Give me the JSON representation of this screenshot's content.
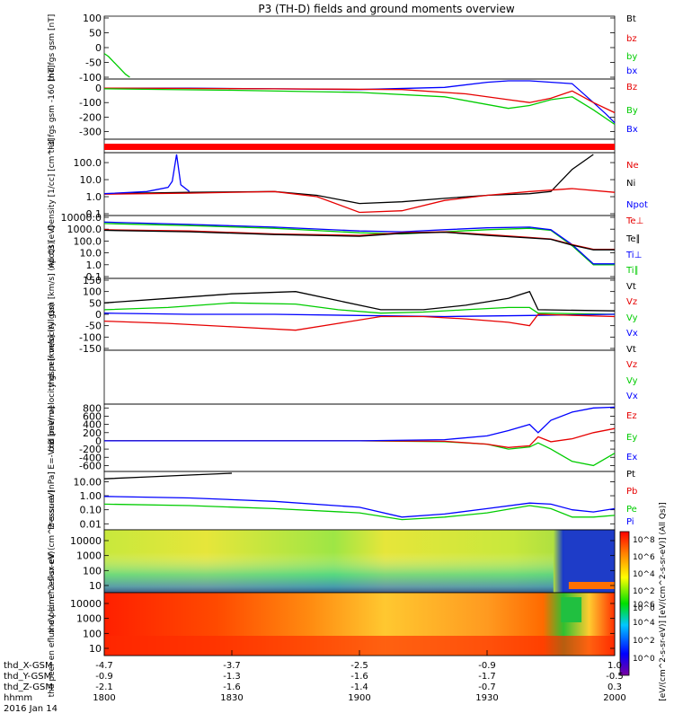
{
  "title": "P3 (TH-D) fields and ground moments overview",
  "x_axis": {
    "rows": [
      {
        "label": "thd_X-GSM",
        "values": [
          "-4.7",
          "-3.7",
          "-2.5",
          "-0.9",
          "1.0"
        ]
      },
      {
        "label": "thd_Y-GSM",
        "values": [
          "-0.9",
          "-1.3",
          "-1.6",
          "-1.7",
          "-0.5"
        ]
      },
      {
        "label": "thd_Z-GSM",
        "values": [
          "-2.1",
          "-1.6",
          "-1.4",
          "-0.7",
          "0.3"
        ]
      },
      {
        "label": "hhmm",
        "values": [
          "1800",
          "1830",
          "1900",
          "1930",
          "2000"
        ]
      }
    ],
    "date": "2016 Jan 14"
  },
  "colorbar": {
    "ticks": [
      "10^8",
      "10^6",
      "10^4",
      "10^2",
      "10^0"
    ],
    "label": "[eV/(cm^2-s-sr-eV)] [eV/(cm^2-s-sr-eV)] (All Qs)]"
  },
  "colors": {
    "black": "#000000",
    "red": "#e60000",
    "green": "#00cc00",
    "blue": "#0000ff"
  },
  "chart_data": [
    {
      "type": "line",
      "ylabel": "thd fgs gsm [nT]",
      "yticks": [
        "100",
        "50",
        "0",
        "-50",
        "-100"
      ],
      "ylim": [
        -100,
        100
      ],
      "legend": [
        "Bt",
        "bz",
        "by",
        "bx"
      ],
      "series": [
        {
          "name": "by",
          "color": "green",
          "x": [
            0,
            1,
            3,
            5,
            6
          ],
          "y": [
            -20,
            -30,
            -60,
            -90,
            -100
          ]
        }
      ]
    },
    {
      "type": "line",
      "ylabel": "thd fgs gsm -160 [nT]",
      "yticks": [
        "0",
        "-100",
        "-200",
        "-300"
      ],
      "ylim": [
        -340,
        50
      ],
      "legend": [
        "Bz",
        "By",
        "Bx"
      ],
      "series": [
        {
          "name": "Bx",
          "color": "blue",
          "x": [
            0,
            20,
            40,
            60,
            80,
            90,
            95,
            100,
            110,
            115,
            118,
            120
          ],
          "y": [
            0,
            0,
            -5,
            -10,
            5,
            40,
            80,
            90,
            30,
            -100,
            -180,
            -240
          ]
        },
        {
          "name": "Bz",
          "color": "red",
          "x": [
            0,
            40,
            70,
            85,
            95,
            100,
            105,
            110,
            115,
            120
          ],
          "y": [
            0,
            -5,
            -10,
            -40,
            -80,
            -100,
            -70,
            -20,
            -100,
            -170
          ]
        },
        {
          "name": "By",
          "color": "green",
          "x": [
            0,
            30,
            60,
            80,
            95,
            100,
            105,
            110,
            115,
            120
          ],
          "y": [
            -5,
            -15,
            -30,
            -60,
            -140,
            -120,
            -80,
            -60,
            -150,
            -250
          ]
        }
      ]
    },
    {
      "type": "bar-strip",
      "ylabel": "",
      "note": "solid red status bar"
    },
    {
      "type": "line",
      "ylabel": "Density [1/cc] [cm^-3]",
      "yticks": [
        "100.0",
        "10.0",
        "1.0",
        "0.1"
      ],
      "ylim": [
        0.1,
        300
      ],
      "yscale": "log",
      "legend": [
        "Ne",
        "Ni",
        "Npot"
      ],
      "series": [
        {
          "name": "Ni",
          "color": "black",
          "x": [
            0,
            20,
            40,
            50,
            60,
            70,
            80,
            90,
            100,
            105,
            110,
            115
          ],
          "y": [
            1.5,
            1.8,
            2.0,
            1.2,
            0.4,
            0.5,
            0.8,
            1.2,
            1.5,
            2.0,
            40,
            400
          ]
        },
        {
          "name": "Ne",
          "color": "red",
          "x": [
            0,
            20,
            40,
            50,
            60,
            70,
            80,
            90,
            100,
            110,
            120
          ],
          "y": [
            1.4,
            1.6,
            2.0,
            1.0,
            0.12,
            0.15,
            0.6,
            1.2,
            2.0,
            3.0,
            1.8
          ]
        },
        {
          "name": "Npot",
          "color": "blue",
          "x": [
            0,
            10,
            15,
            16,
            17,
            18,
            20
          ],
          "y": [
            1.5,
            2.0,
            3.5,
            8,
            300,
            5,
            2.0
          ]
        }
      ]
    },
    {
      "type": "line",
      "ylabel": "npot3 [eV]",
      "yticks": [
        "10000.0",
        "1000.0",
        "100.0",
        "10.0",
        "1.0",
        "0.1"
      ],
      "ylim": [
        0.1,
        10000
      ],
      "yscale": "log",
      "legend": [
        "Te⊥",
        "Te∥",
        "Ti⊥",
        "Ti∥"
      ],
      "series": [
        {
          "name": "Ti∥",
          "color": "green",
          "x": [
            0,
            20,
            40,
            60,
            70,
            80,
            90,
            100,
            105,
            110,
            115,
            120
          ],
          "y": [
            3000,
            2000,
            1200,
            500,
            400,
            600,
            900,
            1200,
            800,
            40,
            1.0,
            1.0
          ]
        },
        {
          "name": "Ti⊥",
          "color": "blue",
          "x": [
            0,
            20,
            40,
            60,
            70,
            80,
            90,
            100,
            105,
            110,
            115,
            120
          ],
          "y": [
            4000,
            2500,
            1500,
            700,
            600,
            900,
            1300,
            1500,
            900,
            50,
            1.2,
            1.2
          ]
        },
        {
          "name": "Te⊥",
          "color": "red",
          "x": [
            0,
            20,
            40,
            60,
            70,
            80,
            90,
            100,
            105,
            110,
            115,
            120
          ],
          "y": [
            900,
            700,
            400,
            300,
            500,
            600,
            350,
            200,
            150,
            50,
            20,
            20
          ]
        },
        {
          "name": "Te∥",
          "color": "black",
          "x": [
            0,
            20,
            40,
            60,
            70,
            80,
            90,
            100,
            105,
            110,
            115,
            120
          ],
          "y": [
            800,
            600,
            350,
            250,
            450,
            550,
            300,
            180,
            140,
            45,
            18,
            18
          ]
        }
      ]
    },
    {
      "type": "line",
      "ylabel": "thd peir velocity gsm [km/s] (All Qs)",
      "yticks": [
        "150",
        "100",
        "50",
        "0",
        "-50",
        "-100",
        "-150"
      ],
      "ylim": [
        -150,
        150
      ],
      "legend": [
        "Vt",
        "Vz",
        "Vy",
        "Vx"
      ],
      "series": [
        {
          "name": "Vt",
          "color": "black",
          "x": [
            0,
            15,
            30,
            45,
            55,
            65,
            75,
            85,
            95,
            100,
            102,
            120
          ],
          "y": [
            50,
            70,
            90,
            100,
            60,
            20,
            20,
            40,
            70,
            100,
            20,
            15
          ]
        },
        {
          "name": "Vy",
          "color": "green",
          "x": [
            0,
            15,
            30,
            45,
            55,
            65,
            75,
            85,
            95,
            100,
            102,
            120
          ],
          "y": [
            20,
            30,
            50,
            45,
            20,
            5,
            10,
            20,
            30,
            30,
            5,
            0
          ]
        },
        {
          "name": "Vx",
          "color": "blue",
          "x": [
            0,
            20,
            40,
            60,
            80,
            100,
            120
          ],
          "y": [
            5,
            0,
            0,
            -5,
            -10,
            -5,
            0
          ]
        },
        {
          "name": "Vz",
          "color": "red",
          "x": [
            0,
            15,
            30,
            45,
            55,
            65,
            75,
            85,
            95,
            100,
            102,
            120
          ],
          "y": [
            -30,
            -40,
            -55,
            -70,
            -40,
            -10,
            -10,
            -20,
            -35,
            -50,
            0,
            -10
          ]
        }
      ]
    },
    {
      "type": "line",
      "ylabel": "thd peer velocity gsm [km/s] (All Qs)",
      "yticks": [],
      "ylim": [
        -150,
        150
      ],
      "legend": [
        "Vt",
        "Vz",
        "Vy",
        "Vx"
      ],
      "series": []
    },
    {
      "type": "line",
      "ylabel": "E=-VxB [mV/m]",
      "yticks": [
        "800",
        "600",
        "400",
        "200",
        "0",
        "-200",
        "-400",
        "-600"
      ],
      "ylim": [
        -700,
        850
      ],
      "legend": [
        "Ez",
        "Ey",
        "Ex"
      ],
      "series": [
        {
          "name": "Ey",
          "color": "green",
          "x": [
            0,
            60,
            80,
            90,
            95,
            100,
            102,
            105,
            110,
            115,
            120
          ],
          "y": [
            0,
            0,
            -20,
            -80,
            -200,
            -150,
            -50,
            -200,
            -500,
            -600,
            -300
          ]
        },
        {
          "name": "Ez",
          "color": "red",
          "x": [
            0,
            60,
            80,
            90,
            95,
            100,
            102,
            105,
            110,
            115,
            120
          ],
          "y": [
            0,
            0,
            -10,
            -80,
            -160,
            -120,
            100,
            -20,
            50,
            200,
            300
          ]
        },
        {
          "name": "Ex",
          "color": "blue",
          "x": [
            0,
            60,
            80,
            90,
            95,
            100,
            102,
            105,
            110,
            115,
            120
          ],
          "y": [
            0,
            0,
            30,
            120,
            250,
            400,
            200,
            500,
            700,
            800,
            820
          ]
        }
      ]
    },
    {
      "type": "line",
      "ylabel": "Pressure [nPa]",
      "yticks": [
        "10.00",
        "1.00",
        "0.10",
        "0.01"
      ],
      "ylim": [
        0.005,
        40
      ],
      "yscale": "log",
      "legend": [
        "Pt",
        "Pb",
        "Pe",
        "Pi"
      ],
      "series": [
        {
          "name": "Pt",
          "color": "black",
          "x": [
            0,
            10,
            20,
            30
          ],
          "y": [
            16,
            22,
            30,
            40
          ]
        },
        {
          "name": "Pi",
          "color": "blue",
          "x": [
            0,
            20,
            40,
            60,
            70,
            80,
            90,
            100,
            105,
            110,
            115,
            120
          ],
          "y": [
            0.9,
            0.7,
            0.4,
            0.15,
            0.03,
            0.05,
            0.12,
            0.3,
            0.25,
            0.1,
            0.07,
            0.12
          ]
        },
        {
          "name": "Pe",
          "color": "green",
          "x": [
            0,
            20,
            40,
            60,
            70,
            80,
            90,
            100,
            105,
            110,
            115,
            120
          ],
          "y": [
            0.25,
            0.2,
            0.12,
            0.06,
            0.02,
            0.03,
            0.06,
            0.2,
            0.12,
            0.03,
            0.03,
            0.04
          ]
        }
      ]
    },
    {
      "type": "heatmap",
      "ylabel": "thd peir en eflux eV (cm^2-s-sr-eV)",
      "yticks": [
        "10000",
        "1000",
        "100",
        "10"
      ],
      "yscale": "log"
    },
    {
      "type": "heatmap",
      "ylabel": "thd peer en eflux eV (cm^2-s-sr-eV)",
      "yticks": [
        "10000",
        "1000",
        "100",
        "10"
      ],
      "yscale": "log"
    }
  ]
}
